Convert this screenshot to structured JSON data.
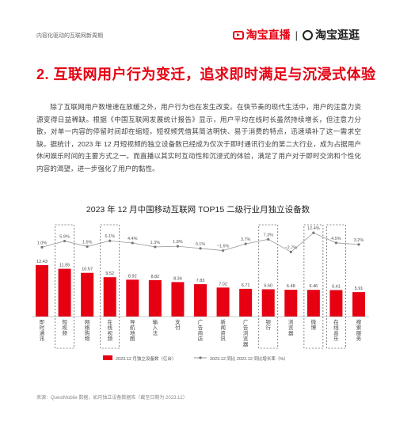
{
  "header": {
    "left_text": "内容化驱动的互联网新周期",
    "brand_taobao_live": "淘宝直播",
    "brand_separator": "|",
    "brand_guangguang": "淘宝逛逛"
  },
  "section": {
    "title": "2. 互联网用户行为变迁，追求即时满足与沉浸式体验"
  },
  "body": {
    "paragraph": "除了互联网用户数增速在放缓之外，用户行为也在发生改变。在快节奏的现代生活中，用户的注意力资源变得日益稀缺。根据《中国互联网发展统计报告》显示，用户平均在线时长虽然持续增长，但注意力分散，对单一内容的停留时间却在缩短。短视频凭借其简洁明快、易于消费的特点，迅速填补了这一需求空缺。据统计，2023 年 12 月短视频的独立设备数已经成为仅次于即时通讯行业的第二大行业，成为占据用户休闲娱乐时间的主要方式之一。而直播以其实时互动性和沉浸式的体验，满足了用户对于即时交流和个性化内容的渴望，进一步强化了用户的黏性。"
  },
  "chart_data": {
    "type": "bar",
    "title": "2023 年 12 月中国移动互联网 TOP15 二级行业月独立设备数",
    "categories": [
      "即时通讯",
      "短视频",
      "网络购物",
      "在线视频",
      "导航地图",
      "输入法",
      "支付",
      "广告商店",
      "新闻资讯",
      "广告浏览器",
      "银行",
      "浏览器",
      "微博",
      "在线音乐",
      "搜索服务"
    ],
    "values": [
      12.43,
      11.55,
      10.57,
      9.52,
      8.92,
      8.82,
      8.34,
      7.83,
      7.02,
      6.71,
      6.6,
      6.48,
      6.46,
      6.41,
      5.91
    ],
    "value_labels": [
      "12.43",
      "11.55",
      "10.57",
      "9.52",
      "8.92",
      "8.82",
      "8.34",
      "7.83",
      "7.02",
      "6.71",
      "6.60",
      "6.48",
      "6.46",
      "6.41",
      "5.91"
    ],
    "growth": [
      1.0,
      5.9,
      1.6,
      6.1,
      4.4,
      1.3,
      1.8,
      0.1,
      -1.6,
      3.7,
      7.3,
      -2.7,
      12.4,
      4.5,
      3.2
    ],
    "growth_labels": [
      "1.0%",
      "5.9%",
      "1.6%",
      "6.1%",
      "4.4%",
      "1.3%",
      "1.8%",
      "0.1%",
      "−1.6%",
      "3.7%",
      "7.3%",
      "−2.7%",
      "12.4%",
      "4.5%",
      "3.2%"
    ],
    "highlighted_categories": [
      "短视频",
      "在线视频",
      "银行",
      "微博",
      "在线音乐"
    ],
    "legend": {
      "bar_series": "2023.12 月独立设备数（亿台）",
      "line_series": "2023.12 同比 2022.12 同比增长率（%）"
    },
    "bar_ylim": [
      0,
      13
    ],
    "growth_ylim": [
      -6,
      14
    ],
    "colors": {
      "bar": "#e60012",
      "line": "#9a9a9a",
      "highlight_border": "#666666"
    }
  },
  "source": {
    "text": "来源：QuestMobile 数据，如月独立设备数据库（截至日期为 2023.12）"
  }
}
